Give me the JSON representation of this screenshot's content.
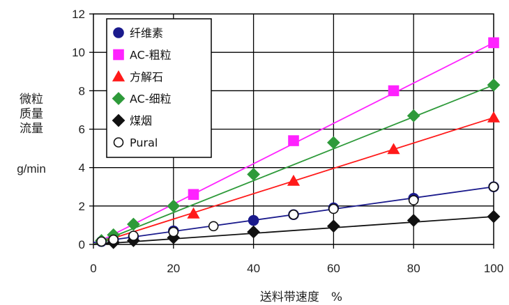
{
  "chart_data": {
    "type": "line",
    "ylabel": [
      "微粒",
      "质量",
      "流量"
    ],
    "yunit": "g/min",
    "xlabel": "送料带速度　%",
    "xlim": [
      0,
      100
    ],
    "ylim": [
      0,
      12
    ],
    "xticks": [
      "0",
      "20",
      "40",
      "60",
      "80",
      "100"
    ],
    "yticks": [
      "0",
      "2",
      "4",
      "6",
      "8",
      "10",
      "12"
    ],
    "grid": true,
    "legend_position": "top-left",
    "series": [
      {
        "name": "纤维素",
        "color": "#1a1a8c",
        "marker": "circle",
        "fit": [
          [
            0,
            0.1
          ],
          [
            100,
            3.0
          ]
        ],
        "points": [
          [
            2,
            0.15
          ],
          [
            5,
            0.25
          ],
          [
            10,
            0.4
          ],
          [
            20,
            0.7
          ],
          [
            40,
            1.25
          ],
          [
            50,
            1.55
          ],
          [
            60,
            1.9
          ],
          [
            80,
            2.4
          ],
          [
            100,
            3.0
          ]
        ]
      },
      {
        "name": "AC-粗粒",
        "color": "#ff22ff",
        "marker": "square",
        "fit": [
          [
            0,
            0.0
          ],
          [
            100,
            10.5
          ]
        ],
        "points": [
          [
            25,
            2.6
          ],
          [
            50,
            5.4
          ],
          [
            75,
            8.0
          ],
          [
            100,
            10.5
          ]
        ]
      },
      {
        "name": "方解石",
        "color": "#ff1a1a",
        "marker": "triangle",
        "fit": [
          [
            0,
            0.0
          ],
          [
            100,
            6.6
          ]
        ],
        "points": [
          [
            25,
            1.6
          ],
          [
            50,
            3.3
          ],
          [
            75,
            4.95
          ],
          [
            100,
            6.6
          ]
        ]
      },
      {
        "name": "AC-细粒",
        "color": "#2e9a3a",
        "marker": "diamond",
        "fit": [
          [
            0,
            0.0
          ],
          [
            100,
            8.3
          ]
        ],
        "points": [
          [
            2,
            0.2
          ],
          [
            5,
            0.5
          ],
          [
            10,
            1.05
          ],
          [
            20,
            2.0
          ],
          [
            40,
            3.65
          ],
          [
            60,
            5.3
          ],
          [
            80,
            6.7
          ],
          [
            100,
            8.3
          ]
        ]
      },
      {
        "name": "煤烟",
        "color": "#111111",
        "marker": "filled-diamond",
        "fit": [
          [
            0,
            0.0
          ],
          [
            100,
            1.45
          ]
        ],
        "points": [
          [
            5,
            0.1
          ],
          [
            10,
            0.2
          ],
          [
            20,
            0.35
          ],
          [
            40,
            0.65
          ],
          [
            60,
            0.95
          ],
          [
            80,
            1.25
          ],
          [
            100,
            1.45
          ]
        ]
      },
      {
        "name": "Pural",
        "color": "#111111",
        "marker": "open-circle",
        "fit": null,
        "points": [
          [
            2,
            0.15
          ],
          [
            5,
            0.25
          ],
          [
            10,
            0.45
          ],
          [
            20,
            0.65
          ],
          [
            30,
            0.95
          ],
          [
            50,
            1.55
          ],
          [
            60,
            1.85
          ],
          [
            80,
            2.3
          ],
          [
            100,
            3.0
          ]
        ]
      }
    ]
  }
}
